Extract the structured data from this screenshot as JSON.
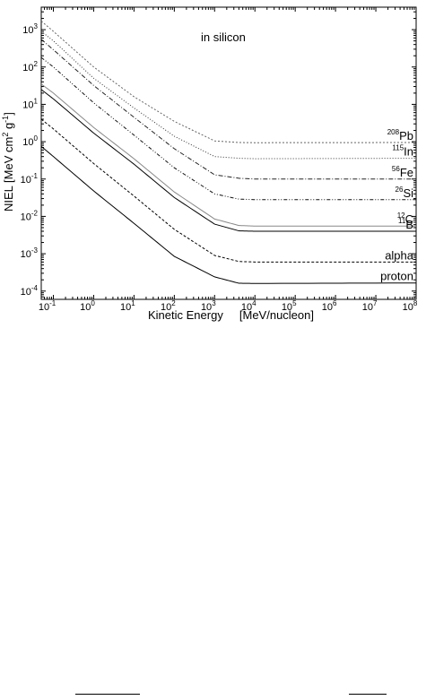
{
  "chart_data": {
    "type": "line",
    "annotation": "in silicon",
    "xlabel": "Kinetic Energy     [MeV/nucleon]",
    "ylabel": {
      "prefix": "NIEL  [MeV cm",
      "cm_exp": "2",
      "mid": " g",
      "g_exp": "-1",
      "suffix": "]"
    },
    "xscale": "log",
    "yscale": "log",
    "xlim": [
      0.05,
      100000000
    ],
    "ylim": [
      6e-05,
      4000
    ],
    "x_ticks": [
      {
        "value": 0.1,
        "base": "10",
        "exp": "-1"
      },
      {
        "value": 1,
        "base": "10",
        "exp": "0"
      },
      {
        "value": 10,
        "base": "10",
        "exp": "1"
      },
      {
        "value": 100,
        "base": "10",
        "exp": "2"
      },
      {
        "value": 1000,
        "base": "10",
        "exp": "3"
      },
      {
        "value": 10000,
        "base": "10",
        "exp": "4"
      },
      {
        "value": 100000,
        "base": "10",
        "exp": "5"
      },
      {
        "value": 1000000,
        "base": "10",
        "exp": "6"
      },
      {
        "value": 10000000,
        "base": "10",
        "exp": "7"
      },
      {
        "value": 100000000,
        "base": "10",
        "exp": "8"
      }
    ],
    "y_ticks": [
      {
        "value": 0.0001,
        "base": "10",
        "exp": "-4"
      },
      {
        "value": 0.001,
        "base": "10",
        "exp": "-3"
      },
      {
        "value": 0.01,
        "base": "10",
        "exp": "-2"
      },
      {
        "value": 0.1,
        "base": "10",
        "exp": "-1"
      },
      {
        "value": 1,
        "base": "10",
        "exp": "0"
      },
      {
        "value": 10,
        "base": "10",
        "exp": "1"
      },
      {
        "value": 100,
        "base": "10",
        "exp": "2"
      },
      {
        "value": 1000,
        "base": "10",
        "exp": "3"
      }
    ],
    "grid": false,
    "legend": "labels at right end of each curve",
    "series": [
      {
        "name": "Pb",
        "mass": "208",
        "dash": "2,2",
        "color": "#666666",
        "points": [
          [
            0.05,
            1700
          ],
          [
            0.1,
            900
          ],
          [
            1,
            100
          ],
          [
            10,
            16
          ],
          [
            100,
            3.5
          ],
          [
            1000,
            1.05
          ],
          [
            4000,
            0.95
          ],
          [
            10000,
            0.94
          ],
          [
            100000000,
            0.95
          ]
        ]
      },
      {
        "name": "In",
        "mass": "115",
        "dash": "1,2",
        "color": "#333333",
        "points": [
          [
            0.05,
            900
          ],
          [
            0.1,
            500
          ],
          [
            1,
            50
          ],
          [
            10,
            8
          ],
          [
            100,
            1.4
          ],
          [
            1000,
            0.4
          ],
          [
            4000,
            0.36
          ],
          [
            10000,
            0.35
          ],
          [
            100000000,
            0.36
          ]
        ]
      },
      {
        "name": "Fe",
        "mass": "56",
        "dash": "5,2,1,2",
        "color": "#222222",
        "points": [
          [
            0.05,
            550
          ],
          [
            0.1,
            290
          ],
          [
            1,
            32
          ],
          [
            10,
            4.5
          ],
          [
            100,
            0.65
          ],
          [
            1000,
            0.13
          ],
          [
            4000,
            0.105
          ],
          [
            10000,
            0.1
          ],
          [
            100000000,
            0.1
          ]
        ]
      },
      {
        "name": "Si",
        "mass": "26",
        "dash": "4,2,1,2,1,2",
        "color": "#111111",
        "points": [
          [
            0.05,
            180
          ],
          [
            0.1,
            100
          ],
          [
            1,
            11
          ],
          [
            10,
            1.5
          ],
          [
            100,
            0.2
          ],
          [
            1000,
            0.04
          ],
          [
            4000,
            0.029
          ],
          [
            10000,
            0.028
          ],
          [
            100000000,
            0.028
          ]
        ]
      },
      {
        "name": "C",
        "mass": "12",
        "dash": "",
        "color": "#888888",
        "points": [
          [
            0.05,
            35
          ],
          [
            0.1,
            20
          ],
          [
            1,
            2.4
          ],
          [
            10,
            0.35
          ],
          [
            100,
            0.045
          ],
          [
            1000,
            0.0085
          ],
          [
            4000,
            0.0057
          ],
          [
            10000,
            0.0055
          ],
          [
            100000000,
            0.0055
          ]
        ]
      },
      {
        "name": "B",
        "mass": "11",
        "dash": "",
        "color": "#000000",
        "points": [
          [
            0.05,
            25
          ],
          [
            0.1,
            14
          ],
          [
            1,
            1.7
          ],
          [
            10,
            0.25
          ],
          [
            100,
            0.032
          ],
          [
            1000,
            0.0062
          ],
          [
            4000,
            0.0041
          ],
          [
            10000,
            0.004
          ],
          [
            100000000,
            0.004
          ]
        ]
      },
      {
        "name": "alpha",
        "mass": "",
        "dash": "3,2",
        "color": "#000000",
        "points": [
          [
            0.05,
            4
          ],
          [
            0.1,
            2.2
          ],
          [
            1,
            0.26
          ],
          [
            10,
            0.035
          ],
          [
            100,
            0.0045
          ],
          [
            1000,
            0.0009
          ],
          [
            4000,
            0.00062
          ],
          [
            10000,
            0.0006
          ],
          [
            100000000,
            0.0006
          ]
        ]
      },
      {
        "name": "proton",
        "mass": "",
        "dash": "",
        "color": "#000000",
        "points": [
          [
            0.05,
            0.75
          ],
          [
            0.1,
            0.4
          ],
          [
            1,
            0.048
          ],
          [
            10,
            0.0065
          ],
          [
            100,
            0.00085
          ],
          [
            1000,
            0.00024
          ],
          [
            4000,
            0.000162
          ],
          [
            10000,
            0.00016
          ],
          [
            100000000,
            0.000165
          ]
        ]
      }
    ]
  }
}
